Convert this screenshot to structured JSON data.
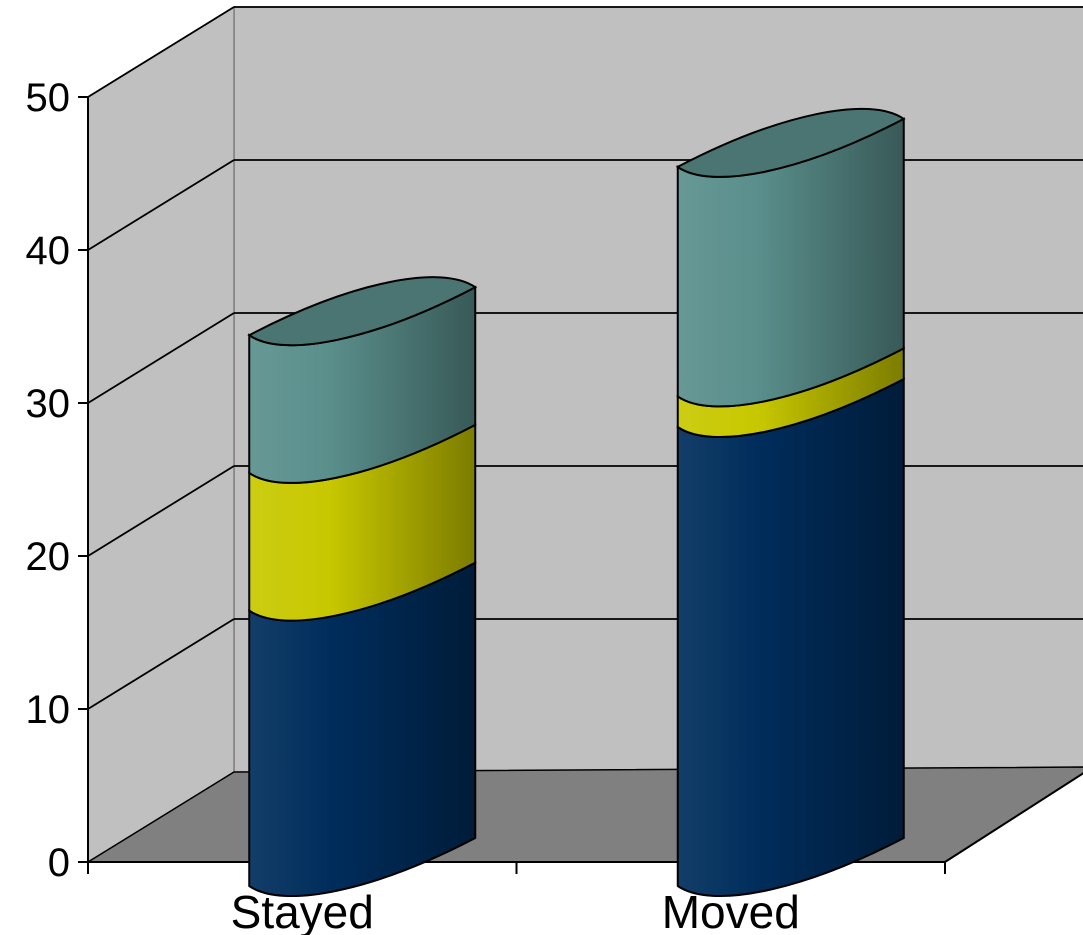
{
  "chart_data": {
    "type": "bar",
    "stacked": true,
    "style": "3d-cylinder",
    "categories": [
      "Stayed",
      "Moved"
    ],
    "series": [
      {
        "values": [
          18,
          30
        ],
        "color": "#002d5c"
      },
      {
        "values": [
          9,
          2
        ],
        "color": "#c8c800"
      },
      {
        "values": [
          9,
          15
        ],
        "color": "#5a8f8c"
      }
    ],
    "title": "",
    "xlabel": "",
    "ylabel": "",
    "ylim": [
      0,
      50
    ],
    "yticks": [
      0,
      10,
      20,
      30,
      40,
      50
    ],
    "grid": true,
    "legend": "none",
    "colors": {
      "back_wall": "#c0c0c0",
      "side_wall": "#c0c0c0",
      "floor": "#808080",
      "gridline": "#000000"
    }
  }
}
